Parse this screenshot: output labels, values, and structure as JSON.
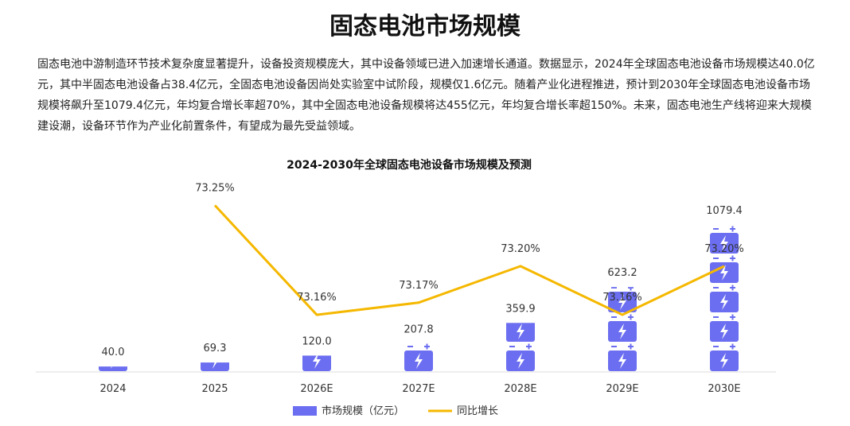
{
  "header": {
    "title": "固态电池市场规模"
  },
  "paragraph": "固态电池中游制造环节技术复杂度显著提升，设备投资规模庞大，其中设备领域已进入加速增长通道。数据显示，2024年全球固态电池设备市场规模达40.0亿元，其中半固态电池设备占38.4亿元，全固态电池设备因尚处实验室中试阶段，规模仅1.6亿元。随着产业化进程推进，预计到2030年全球固态电池设备市场规模将飙升至1079.4亿元，年均复合增长率超70%，其中全固态电池设备规模将达455亿元，年均复合增长率超150%。未来，固态电池生产线将迎来大规模建设潮，设备环节作为产业化前置条件，有望成为最先受益领域。",
  "chart_data": {
    "type": "bar_line",
    "title": "2024-2030年全球固态电池设备市场规模及预测",
    "categories": [
      "2024",
      "2025",
      "2026E",
      "2027E",
      "2028E",
      "2029E",
      "2030E"
    ],
    "series": [
      {
        "name": "市场规模（亿元）",
        "type": "bar",
        "color": "#6b6ef0",
        "values": [
          40,
          69.3,
          120,
          207.8,
          359.9,
          623.2,
          1079.4
        ],
        "value_labels": [
          "40.0",
          "69.3",
          "120.0",
          "207.8",
          "359.9",
          "623.2",
          "1079.4"
        ]
      },
      {
        "name": "同比增长",
        "type": "line",
        "axis": "y2",
        "color": "#f5b800",
        "values": [
          null,
          73.25,
          73.16,
          73.17,
          73.2,
          73.16,
          73.2
        ],
        "value_labels": [
          null,
          "73.25%",
          "73.16%",
          "73.17%",
          "73.20%",
          "73.16%",
          "73.20%"
        ]
      }
    ],
    "ylim": [
      0,
      1330
    ],
    "y2lim": [
      73.113,
      73.262
    ],
    "legend": "bottom"
  }
}
